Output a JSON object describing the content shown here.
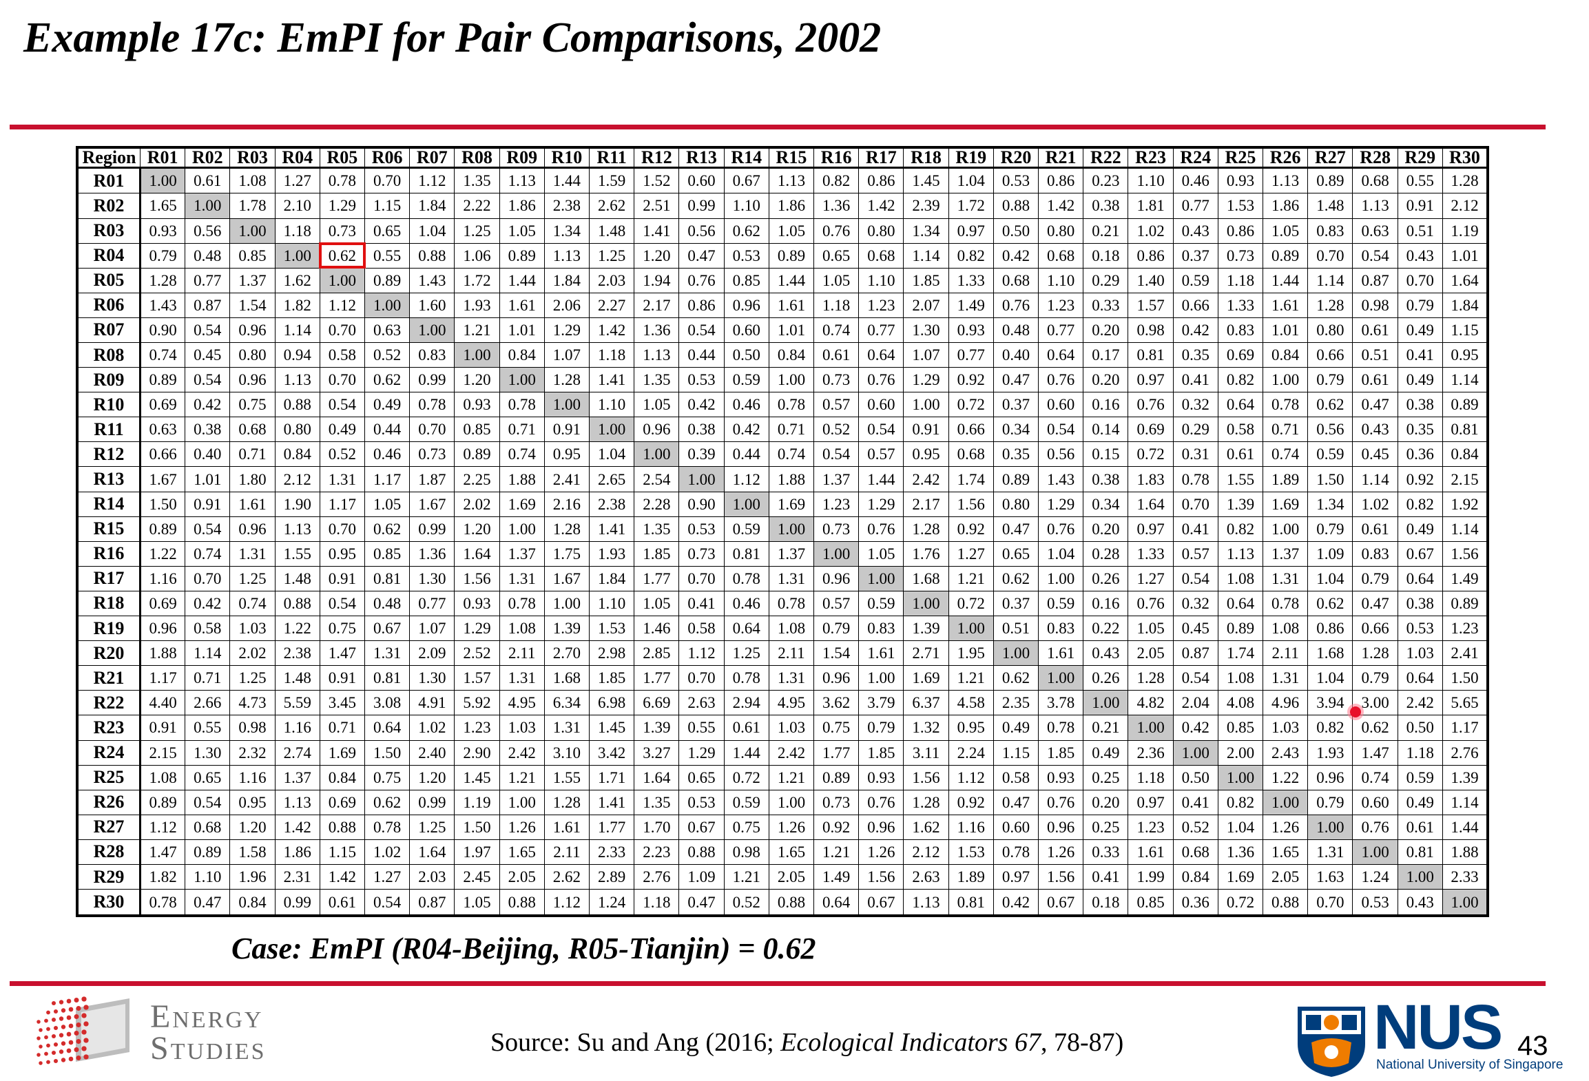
{
  "slide": {
    "title": "Example 17c: EmPI for Pair Comparisons, 2002",
    "caption": "Case: EmPI (R04-Beijing, R05-Tianjin) = 0.62",
    "source_prefix": "Source: Su and Ang (2016; ",
    "source_journal": "Ecological Indicators 67",
    "source_suffix": ", 78-87)",
    "page_number": "43",
    "colors": {
      "rule": "#c8102e",
      "diagonal": "#c8c8c8",
      "highlight": "#e01010",
      "nus_blue": "#003d7c",
      "nus_orange": "#ef7c00"
    }
  },
  "logos": {
    "energy_studies_line1": "Energy",
    "energy_studies_line2": "Studies",
    "nus": "NUS",
    "nus_sub": "National University of Singapore"
  },
  "matrix": {
    "corner_label": "Region",
    "highlight": {
      "row": "R04",
      "col": "R05"
    },
    "columns": [
      "R01",
      "R02",
      "R03",
      "R04",
      "R05",
      "R06",
      "R07",
      "R08",
      "R09",
      "R10",
      "R11",
      "R12",
      "R13",
      "R14",
      "R15",
      "R16",
      "R17",
      "R18",
      "R19",
      "R20",
      "R21",
      "R22",
      "R23",
      "R24",
      "R25",
      "R26",
      "R27",
      "R28",
      "R29",
      "R30"
    ],
    "rows": [
      {
        "label": "R01",
        "values": [
          "1.00",
          "0.61",
          "1.08",
          "1.27",
          "0.78",
          "0.70",
          "1.12",
          "1.35",
          "1.13",
          "1.44",
          "1.59",
          "1.52",
          "0.60",
          "0.67",
          "1.13",
          "0.82",
          "0.86",
          "1.45",
          "1.04",
          "0.53",
          "0.86",
          "0.23",
          "1.10",
          "0.46",
          "0.93",
          "1.13",
          "0.89",
          "0.68",
          "0.55",
          "1.28"
        ]
      },
      {
        "label": "R02",
        "values": [
          "1.65",
          "1.00",
          "1.78",
          "2.10",
          "1.29",
          "1.15",
          "1.84",
          "2.22",
          "1.86",
          "2.38",
          "2.62",
          "2.51",
          "0.99",
          "1.10",
          "1.86",
          "1.36",
          "1.42",
          "2.39",
          "1.72",
          "0.88",
          "1.42",
          "0.38",
          "1.81",
          "0.77",
          "1.53",
          "1.86",
          "1.48",
          "1.13",
          "0.91",
          "2.12"
        ]
      },
      {
        "label": "R03",
        "values": [
          "0.93",
          "0.56",
          "1.00",
          "1.18",
          "0.73",
          "0.65",
          "1.04",
          "1.25",
          "1.05",
          "1.34",
          "1.48",
          "1.41",
          "0.56",
          "0.62",
          "1.05",
          "0.76",
          "0.80",
          "1.34",
          "0.97",
          "0.50",
          "0.80",
          "0.21",
          "1.02",
          "0.43",
          "0.86",
          "1.05",
          "0.83",
          "0.63",
          "0.51",
          "1.19"
        ]
      },
      {
        "label": "R04",
        "values": [
          "0.79",
          "0.48",
          "0.85",
          "1.00",
          "0.62",
          "0.55",
          "0.88",
          "1.06",
          "0.89",
          "1.13",
          "1.25",
          "1.20",
          "0.47",
          "0.53",
          "0.89",
          "0.65",
          "0.68",
          "1.14",
          "0.82",
          "0.42",
          "0.68",
          "0.18",
          "0.86",
          "0.37",
          "0.73",
          "0.89",
          "0.70",
          "0.54",
          "0.43",
          "1.01"
        ]
      },
      {
        "label": "R05",
        "values": [
          "1.28",
          "0.77",
          "1.37",
          "1.62",
          "1.00",
          "0.89",
          "1.43",
          "1.72",
          "1.44",
          "1.84",
          "2.03",
          "1.94",
          "0.76",
          "0.85",
          "1.44",
          "1.05",
          "1.10",
          "1.85",
          "1.33",
          "0.68",
          "1.10",
          "0.29",
          "1.40",
          "0.59",
          "1.18",
          "1.44",
          "1.14",
          "0.87",
          "0.70",
          "1.64"
        ]
      },
      {
        "label": "R06",
        "values": [
          "1.43",
          "0.87",
          "1.54",
          "1.82",
          "1.12",
          "1.00",
          "1.60",
          "1.93",
          "1.61",
          "2.06",
          "2.27",
          "2.17",
          "0.86",
          "0.96",
          "1.61",
          "1.18",
          "1.23",
          "2.07",
          "1.49",
          "0.76",
          "1.23",
          "0.33",
          "1.57",
          "0.66",
          "1.33",
          "1.61",
          "1.28",
          "0.98",
          "0.79",
          "1.84"
        ]
      },
      {
        "label": "R07",
        "values": [
          "0.90",
          "0.54",
          "0.96",
          "1.14",
          "0.70",
          "0.63",
          "1.00",
          "1.21",
          "1.01",
          "1.29",
          "1.42",
          "1.36",
          "0.54",
          "0.60",
          "1.01",
          "0.74",
          "0.77",
          "1.30",
          "0.93",
          "0.48",
          "0.77",
          "0.20",
          "0.98",
          "0.42",
          "0.83",
          "1.01",
          "0.80",
          "0.61",
          "0.49",
          "1.15"
        ]
      },
      {
        "label": "R08",
        "values": [
          "0.74",
          "0.45",
          "0.80",
          "0.94",
          "0.58",
          "0.52",
          "0.83",
          "1.00",
          "0.84",
          "1.07",
          "1.18",
          "1.13",
          "0.44",
          "0.50",
          "0.84",
          "0.61",
          "0.64",
          "1.07",
          "0.77",
          "0.40",
          "0.64",
          "0.17",
          "0.81",
          "0.35",
          "0.69",
          "0.84",
          "0.66",
          "0.51",
          "0.41",
          "0.95"
        ]
      },
      {
        "label": "R09",
        "values": [
          "0.89",
          "0.54",
          "0.96",
          "1.13",
          "0.70",
          "0.62",
          "0.99",
          "1.20",
          "1.00",
          "1.28",
          "1.41",
          "1.35",
          "0.53",
          "0.59",
          "1.00",
          "0.73",
          "0.76",
          "1.29",
          "0.92",
          "0.47",
          "0.76",
          "0.20",
          "0.97",
          "0.41",
          "0.82",
          "1.00",
          "0.79",
          "0.61",
          "0.49",
          "1.14"
        ]
      },
      {
        "label": "R10",
        "values": [
          "0.69",
          "0.42",
          "0.75",
          "0.88",
          "0.54",
          "0.49",
          "0.78",
          "0.93",
          "0.78",
          "1.00",
          "1.10",
          "1.05",
          "0.42",
          "0.46",
          "0.78",
          "0.57",
          "0.60",
          "1.00",
          "0.72",
          "0.37",
          "0.60",
          "0.16",
          "0.76",
          "0.32",
          "0.64",
          "0.78",
          "0.62",
          "0.47",
          "0.38",
          "0.89"
        ]
      },
      {
        "label": "R11",
        "values": [
          "0.63",
          "0.38",
          "0.68",
          "0.80",
          "0.49",
          "0.44",
          "0.70",
          "0.85",
          "0.71",
          "0.91",
          "1.00",
          "0.96",
          "0.38",
          "0.42",
          "0.71",
          "0.52",
          "0.54",
          "0.91",
          "0.66",
          "0.34",
          "0.54",
          "0.14",
          "0.69",
          "0.29",
          "0.58",
          "0.71",
          "0.56",
          "0.43",
          "0.35",
          "0.81"
        ]
      },
      {
        "label": "R12",
        "values": [
          "0.66",
          "0.40",
          "0.71",
          "0.84",
          "0.52",
          "0.46",
          "0.73",
          "0.89",
          "0.74",
          "0.95",
          "1.04",
          "1.00",
          "0.39",
          "0.44",
          "0.74",
          "0.54",
          "0.57",
          "0.95",
          "0.68",
          "0.35",
          "0.56",
          "0.15",
          "0.72",
          "0.31",
          "0.61",
          "0.74",
          "0.59",
          "0.45",
          "0.36",
          "0.84"
        ]
      },
      {
        "label": "R13",
        "values": [
          "1.67",
          "1.01",
          "1.80",
          "2.12",
          "1.31",
          "1.17",
          "1.87",
          "2.25",
          "1.88",
          "2.41",
          "2.65",
          "2.54",
          "1.00",
          "1.12",
          "1.88",
          "1.37",
          "1.44",
          "2.42",
          "1.74",
          "0.89",
          "1.43",
          "0.38",
          "1.83",
          "0.78",
          "1.55",
          "1.89",
          "1.50",
          "1.14",
          "0.92",
          "2.15"
        ]
      },
      {
        "label": "R14",
        "values": [
          "1.50",
          "0.91",
          "1.61",
          "1.90",
          "1.17",
          "1.05",
          "1.67",
          "2.02",
          "1.69",
          "2.16",
          "2.38",
          "2.28",
          "0.90",
          "1.00",
          "1.69",
          "1.23",
          "1.29",
          "2.17",
          "1.56",
          "0.80",
          "1.29",
          "0.34",
          "1.64",
          "0.70",
          "1.39",
          "1.69",
          "1.34",
          "1.02",
          "0.82",
          "1.92"
        ]
      },
      {
        "label": "R15",
        "values": [
          "0.89",
          "0.54",
          "0.96",
          "1.13",
          "0.70",
          "0.62",
          "0.99",
          "1.20",
          "1.00",
          "1.28",
          "1.41",
          "1.35",
          "0.53",
          "0.59",
          "1.00",
          "0.73",
          "0.76",
          "1.28",
          "0.92",
          "0.47",
          "0.76",
          "0.20",
          "0.97",
          "0.41",
          "0.82",
          "1.00",
          "0.79",
          "0.61",
          "0.49",
          "1.14"
        ]
      },
      {
        "label": "R16",
        "values": [
          "1.22",
          "0.74",
          "1.31",
          "1.55",
          "0.95",
          "0.85",
          "1.36",
          "1.64",
          "1.37",
          "1.75",
          "1.93",
          "1.85",
          "0.73",
          "0.81",
          "1.37",
          "1.00",
          "1.05",
          "1.76",
          "1.27",
          "0.65",
          "1.04",
          "0.28",
          "1.33",
          "0.57",
          "1.13",
          "1.37",
          "1.09",
          "0.83",
          "0.67",
          "1.56"
        ]
      },
      {
        "label": "R17",
        "values": [
          "1.16",
          "0.70",
          "1.25",
          "1.48",
          "0.91",
          "0.81",
          "1.30",
          "1.56",
          "1.31",
          "1.67",
          "1.84",
          "1.77",
          "0.70",
          "0.78",
          "1.31",
          "0.96",
          "1.00",
          "1.68",
          "1.21",
          "0.62",
          "1.00",
          "0.26",
          "1.27",
          "0.54",
          "1.08",
          "1.31",
          "1.04",
          "0.79",
          "0.64",
          "1.49"
        ]
      },
      {
        "label": "R18",
        "values": [
          "0.69",
          "0.42",
          "0.74",
          "0.88",
          "0.54",
          "0.48",
          "0.77",
          "0.93",
          "0.78",
          "1.00",
          "1.10",
          "1.05",
          "0.41",
          "0.46",
          "0.78",
          "0.57",
          "0.59",
          "1.00",
          "0.72",
          "0.37",
          "0.59",
          "0.16",
          "0.76",
          "0.32",
          "0.64",
          "0.78",
          "0.62",
          "0.47",
          "0.38",
          "0.89"
        ]
      },
      {
        "label": "R19",
        "values": [
          "0.96",
          "0.58",
          "1.03",
          "1.22",
          "0.75",
          "0.67",
          "1.07",
          "1.29",
          "1.08",
          "1.39",
          "1.53",
          "1.46",
          "0.58",
          "0.64",
          "1.08",
          "0.79",
          "0.83",
          "1.39",
          "1.00",
          "0.51",
          "0.83",
          "0.22",
          "1.05",
          "0.45",
          "0.89",
          "1.08",
          "0.86",
          "0.66",
          "0.53",
          "1.23"
        ]
      },
      {
        "label": "R20",
        "values": [
          "1.88",
          "1.14",
          "2.02",
          "2.38",
          "1.47",
          "1.31",
          "2.09",
          "2.52",
          "2.11",
          "2.70",
          "2.98",
          "2.85",
          "1.12",
          "1.25",
          "2.11",
          "1.54",
          "1.61",
          "2.71",
          "1.95",
          "1.00",
          "1.61",
          "0.43",
          "2.05",
          "0.87",
          "1.74",
          "2.11",
          "1.68",
          "1.28",
          "1.03",
          "2.41"
        ]
      },
      {
        "label": "R21",
        "values": [
          "1.17",
          "0.71",
          "1.25",
          "1.48",
          "0.91",
          "0.81",
          "1.30",
          "1.57",
          "1.31",
          "1.68",
          "1.85",
          "1.77",
          "0.70",
          "0.78",
          "1.31",
          "0.96",
          "1.00",
          "1.69",
          "1.21",
          "0.62",
          "1.00",
          "0.26",
          "1.28",
          "0.54",
          "1.08",
          "1.31",
          "1.04",
          "0.79",
          "0.64",
          "1.50"
        ]
      },
      {
        "label": "R22",
        "values": [
          "4.40",
          "2.66",
          "4.73",
          "5.59",
          "3.45",
          "3.08",
          "4.91",
          "5.92",
          "4.95",
          "6.34",
          "6.98",
          "6.69",
          "2.63",
          "2.94",
          "4.95",
          "3.62",
          "3.79",
          "6.37",
          "4.58",
          "2.35",
          "3.78",
          "1.00",
          "4.82",
          "2.04",
          "4.08",
          "4.96",
          "3.94",
          "3.00",
          "2.42",
          "5.65"
        ]
      },
      {
        "label": "R23",
        "values": [
          "0.91",
          "0.55",
          "0.98",
          "1.16",
          "0.71",
          "0.64",
          "1.02",
          "1.23",
          "1.03",
          "1.31",
          "1.45",
          "1.39",
          "0.55",
          "0.61",
          "1.03",
          "0.75",
          "0.79",
          "1.32",
          "0.95",
          "0.49",
          "0.78",
          "0.21",
          "1.00",
          "0.42",
          "0.85",
          "1.03",
          "0.82",
          "0.62",
          "0.50",
          "1.17"
        ]
      },
      {
        "label": "R24",
        "values": [
          "2.15",
          "1.30",
          "2.32",
          "2.74",
          "1.69",
          "1.50",
          "2.40",
          "2.90",
          "2.42",
          "3.10",
          "3.42",
          "3.27",
          "1.29",
          "1.44",
          "2.42",
          "1.77",
          "1.85",
          "3.11",
          "2.24",
          "1.15",
          "1.85",
          "0.49",
          "2.36",
          "1.00",
          "2.00",
          "2.43",
          "1.93",
          "1.47",
          "1.18",
          "2.76"
        ]
      },
      {
        "label": "R25",
        "values": [
          "1.08",
          "0.65",
          "1.16",
          "1.37",
          "0.84",
          "0.75",
          "1.20",
          "1.45",
          "1.21",
          "1.55",
          "1.71",
          "1.64",
          "0.65",
          "0.72",
          "1.21",
          "0.89",
          "0.93",
          "1.56",
          "1.12",
          "0.58",
          "0.93",
          "0.25",
          "1.18",
          "0.50",
          "1.00",
          "1.22",
          "0.96",
          "0.74",
          "0.59",
          "1.39"
        ]
      },
      {
        "label": "R26",
        "values": [
          "0.89",
          "0.54",
          "0.95",
          "1.13",
          "0.69",
          "0.62",
          "0.99",
          "1.19",
          "1.00",
          "1.28",
          "1.41",
          "1.35",
          "0.53",
          "0.59",
          "1.00",
          "0.73",
          "0.76",
          "1.28",
          "0.92",
          "0.47",
          "0.76",
          "0.20",
          "0.97",
          "0.41",
          "0.82",
          "1.00",
          "0.79",
          "0.60",
          "0.49",
          "1.14"
        ]
      },
      {
        "label": "R27",
        "values": [
          "1.12",
          "0.68",
          "1.20",
          "1.42",
          "0.88",
          "0.78",
          "1.25",
          "1.50",
          "1.26",
          "1.61",
          "1.77",
          "1.70",
          "0.67",
          "0.75",
          "1.26",
          "0.92",
          "0.96",
          "1.62",
          "1.16",
          "0.60",
          "0.96",
          "0.25",
          "1.23",
          "0.52",
          "1.04",
          "1.26",
          "1.00",
          "0.76",
          "0.61",
          "1.44"
        ]
      },
      {
        "label": "R28",
        "values": [
          "1.47",
          "0.89",
          "1.58",
          "1.86",
          "1.15",
          "1.02",
          "1.64",
          "1.97",
          "1.65",
          "2.11",
          "2.33",
          "2.23",
          "0.88",
          "0.98",
          "1.65",
          "1.21",
          "1.26",
          "2.12",
          "1.53",
          "0.78",
          "1.26",
          "0.33",
          "1.61",
          "0.68",
          "1.36",
          "1.65",
          "1.31",
          "1.00",
          "0.81",
          "1.88"
        ]
      },
      {
        "label": "R29",
        "values": [
          "1.82",
          "1.10",
          "1.96",
          "2.31",
          "1.42",
          "1.27",
          "2.03",
          "2.45",
          "2.05",
          "2.62",
          "2.89",
          "2.76",
          "1.09",
          "1.21",
          "2.05",
          "1.49",
          "1.56",
          "2.63",
          "1.89",
          "0.97",
          "1.56",
          "0.41",
          "1.99",
          "0.84",
          "1.69",
          "2.05",
          "1.63",
          "1.24",
          "1.00",
          "2.33"
        ]
      },
      {
        "label": "R30",
        "values": [
          "0.78",
          "0.47",
          "0.84",
          "0.99",
          "0.61",
          "0.54",
          "0.87",
          "1.05",
          "0.88",
          "1.12",
          "1.24",
          "1.18",
          "0.47",
          "0.52",
          "0.88",
          "0.64",
          "0.67",
          "1.13",
          "0.81",
          "0.42",
          "0.67",
          "0.18",
          "0.85",
          "0.36",
          "0.72",
          "0.88",
          "0.70",
          "0.53",
          "0.43",
          "1.00"
        ]
      }
    ]
  }
}
